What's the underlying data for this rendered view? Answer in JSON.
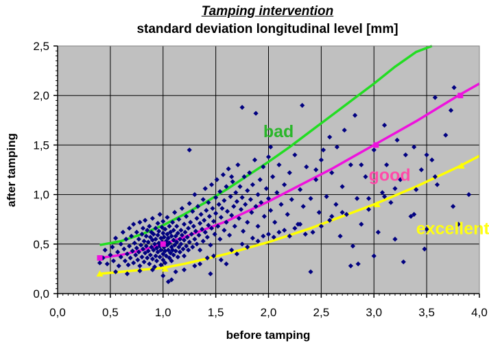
{
  "chart_data": {
    "type": "scatter",
    "title": "Tamping intervention",
    "subtitle": "standard deviation longitudinal level [mm]",
    "xlabel": "before tamping",
    "ylabel": "after tamping",
    "xlim": [
      0,
      4.0
    ],
    "ylim": [
      0,
      2.5
    ],
    "xticks": [
      "0,0",
      "0,5",
      "1,0",
      "1,5",
      "2,0",
      "2,5",
      "3,0",
      "3,5",
      "4,0"
    ],
    "yticks": [
      "0,0",
      "0,5",
      "1,0",
      "1,5",
      "2,0",
      "2,5"
    ],
    "grid": true,
    "background": "#c0c0c0",
    "curves": [
      {
        "label": "bad",
        "color": "#22dd22",
        "label_color": "#2ab62a",
        "label_pos": [
          1.95,
          1.58
        ],
        "points": [
          [
            0.4,
            0.49
          ],
          [
            0.6,
            0.53
          ],
          [
            0.8,
            0.6
          ],
          [
            1.0,
            0.69
          ],
          [
            1.2,
            0.8
          ],
          [
            1.4,
            0.92
          ],
          [
            1.6,
            1.05
          ],
          [
            1.8,
            1.19
          ],
          [
            2.0,
            1.33
          ],
          [
            2.2,
            1.48
          ],
          [
            2.4,
            1.64
          ],
          [
            2.6,
            1.8
          ],
          [
            2.8,
            1.96
          ],
          [
            3.0,
            2.12
          ],
          [
            3.2,
            2.29
          ],
          [
            3.4,
            2.44
          ],
          [
            3.55,
            2.5
          ]
        ],
        "markers": []
      },
      {
        "label": "good",
        "color": "#ee11dd",
        "label_color": "#ff4aaa",
        "label_pos": [
          2.95,
          1.14
        ],
        "points": [
          [
            0.4,
            0.36
          ],
          [
            0.6,
            0.39
          ],
          [
            0.8,
            0.44
          ],
          [
            1.0,
            0.5
          ],
          [
            1.2,
            0.57
          ],
          [
            1.4,
            0.65
          ],
          [
            1.6,
            0.73
          ],
          [
            1.8,
            0.83
          ],
          [
            2.0,
            0.93
          ],
          [
            2.2,
            1.04
          ],
          [
            2.4,
            1.15
          ],
          [
            2.6,
            1.26
          ],
          [
            2.8,
            1.38
          ],
          [
            3.0,
            1.5
          ],
          [
            3.2,
            1.62
          ],
          [
            3.4,
            1.74
          ],
          [
            3.6,
            1.87
          ],
          [
            3.8,
            2.0
          ],
          [
            4.0,
            2.12
          ]
        ],
        "markers": [
          [
            0.4,
            0.36
          ],
          [
            1.0,
            0.5
          ],
          [
            3.02,
            1.5
          ],
          [
            3.82,
            2.0
          ]
        ]
      },
      {
        "label": "excellent",
        "color": "#ffff00",
        "label_color": "#ffff11",
        "label_pos": [
          3.4,
          0.6
        ],
        "points": [
          [
            0.4,
            0.2
          ],
          [
            0.6,
            0.22
          ],
          [
            0.8,
            0.24
          ],
          [
            1.0,
            0.26
          ],
          [
            1.2,
            0.3
          ],
          [
            1.4,
            0.35
          ],
          [
            1.6,
            0.4
          ],
          [
            1.8,
            0.46
          ],
          [
            2.0,
            0.52
          ],
          [
            2.2,
            0.59
          ],
          [
            2.4,
            0.66
          ],
          [
            2.6,
            0.74
          ],
          [
            2.8,
            0.82
          ],
          [
            3.0,
            0.9
          ],
          [
            3.2,
            0.99
          ],
          [
            3.4,
            1.08
          ],
          [
            3.6,
            1.18
          ],
          [
            3.8,
            1.28
          ],
          [
            4.0,
            1.39
          ]
        ],
        "markers": [
          [
            0.4,
            0.2
          ],
          [
            1.02,
            0.25
          ],
          [
            3.03,
            0.9
          ],
          [
            3.83,
            1.29
          ]
        ]
      }
    ],
    "scatter_color": "#000080",
    "points": [
      [
        0.4,
        0.31
      ],
      [
        0.43,
        0.36
      ],
      [
        0.45,
        0.44
      ],
      [
        0.47,
        0.3
      ],
      [
        0.5,
        0.39
      ],
      [
        0.52,
        0.47
      ],
      [
        0.53,
        0.33
      ],
      [
        0.55,
        0.56
      ],
      [
        0.57,
        0.42
      ],
      [
        0.58,
        0.28
      ],
      [
        0.6,
        0.5
      ],
      [
        0.6,
        0.37
      ],
      [
        0.62,
        0.62
      ],
      [
        0.63,
        0.45
      ],
      [
        0.64,
        0.33
      ],
      [
        0.65,
        0.55
      ],
      [
        0.66,
        0.4
      ],
      [
        0.67,
        0.29
      ],
      [
        0.68,
        0.66
      ],
      [
        0.68,
        0.48
      ],
      [
        0.69,
        0.36
      ],
      [
        0.7,
        0.58
      ],
      [
        0.71,
        0.43
      ],
      [
        0.72,
        0.31
      ],
      [
        0.72,
        0.7
      ],
      [
        0.73,
        0.51
      ],
      [
        0.74,
        0.39
      ],
      [
        0.75,
        0.62
      ],
      [
        0.75,
        0.46
      ],
      [
        0.76,
        0.34
      ],
      [
        0.77,
        0.55
      ],
      [
        0.77,
        0.42
      ],
      [
        0.78,
        0.72
      ],
      [
        0.78,
        0.28
      ],
      [
        0.79,
        0.49
      ],
      [
        0.8,
        0.6
      ],
      [
        0.8,
        0.37
      ],
      [
        0.81,
        0.45
      ],
      [
        0.81,
        0.66
      ],
      [
        0.82,
        0.53
      ],
      [
        0.82,
        0.32
      ],
      [
        0.83,
        0.41
      ],
      [
        0.83,
        0.74
      ],
      [
        0.84,
        0.58
      ],
      [
        0.84,
        0.48
      ],
      [
        0.85,
        0.36
      ],
      [
        0.85,
        0.64
      ],
      [
        0.86,
        0.52
      ],
      [
        0.86,
        0.43
      ],
      [
        0.87,
        0.3
      ],
      [
        0.87,
        0.68
      ],
      [
        0.88,
        0.57
      ],
      [
        0.88,
        0.39
      ],
      [
        0.89,
        0.47
      ],
      [
        0.89,
        0.62
      ],
      [
        0.9,
        0.35
      ],
      [
        0.9,
        0.54
      ],
      [
        0.9,
        0.76
      ],
      [
        0.91,
        0.44
      ],
      [
        0.91,
        0.6
      ],
      [
        0.92,
        0.5
      ],
      [
        0.92,
        0.27
      ],
      [
        0.93,
        0.38
      ],
      [
        0.93,
        0.66
      ],
      [
        0.93,
        0.55
      ],
      [
        0.94,
        0.46
      ],
      [
        0.94,
        0.33
      ],
      [
        0.95,
        0.59
      ],
      [
        0.95,
        0.71
      ],
      [
        0.95,
        0.42
      ],
      [
        0.96,
        0.51
      ],
      [
        0.96,
        0.63
      ],
      [
        0.97,
        0.37
      ],
      [
        0.97,
        0.48
      ],
      [
        0.97,
        0.8
      ],
      [
        0.98,
        0.56
      ],
      [
        0.98,
        0.29
      ],
      [
        0.98,
        0.44
      ],
      [
        0.99,
        0.67
      ],
      [
        0.99,
        0.52
      ],
      [
        1.0,
        0.4
      ],
      [
        1.0,
        0.61
      ],
      [
        1.0,
        0.34
      ],
      [
        1.0,
        0.73
      ],
      [
        1.01,
        0.47
      ],
      [
        1.01,
        0.57
      ],
      [
        1.02,
        0.43
      ],
      [
        1.02,
        0.65
      ],
      [
        1.02,
        0.31
      ],
      [
        1.03,
        0.53
      ],
      [
        1.03,
        0.38
      ],
      [
        1.04,
        0.6
      ],
      [
        1.04,
        0.49
      ],
      [
        1.04,
        0.77
      ],
      [
        1.05,
        0.44
      ],
      [
        1.05,
        0.56
      ],
      [
        1.06,
        0.36
      ],
      [
        1.06,
        0.68
      ],
      [
        1.06,
        0.51
      ],
      [
        1.07,
        0.41
      ],
      [
        1.07,
        0.62
      ],
      [
        1.08,
        0.47
      ],
      [
        1.08,
        0.33
      ],
      [
        1.08,
        0.58
      ],
      [
        1.09,
        0.72
      ],
      [
        1.09,
        0.44
      ],
      [
        1.1,
        0.54
      ],
      [
        1.1,
        0.39
      ],
      [
        1.1,
        0.64
      ],
      [
        1.11,
        0.49
      ],
      [
        1.11,
        0.82
      ],
      [
        1.12,
        0.58
      ],
      [
        1.12,
        0.43
      ],
      [
        1.13,
        0.52
      ],
      [
        1.13,
        0.68
      ],
      [
        1.14,
        0.37
      ],
      [
        1.14,
        0.61
      ],
      [
        1.15,
        0.47
      ],
      [
        1.15,
        0.75
      ],
      [
        1.16,
        0.55
      ],
      [
        1.16,
        0.42
      ],
      [
        1.17,
        0.64
      ],
      [
        1.17,
        0.5
      ],
      [
        1.18,
        0.86
      ],
      [
        1.18,
        0.59
      ],
      [
        1.19,
        0.45
      ],
      [
        1.2,
        0.7
      ],
      [
        1.2,
        0.54
      ],
      [
        1.2,
        0.38
      ],
      [
        1.21,
        0.62
      ],
      [
        1.22,
        0.48
      ],
      [
        1.22,
        0.78
      ],
      [
        1.23,
        0.57
      ],
      [
        1.24,
        0.66
      ],
      [
        1.24,
        0.44
      ],
      [
        1.25,
        0.91
      ],
      [
        1.25,
        0.52
      ],
      [
        1.26,
        0.72
      ],
      [
        1.27,
        0.6
      ],
      [
        1.28,
        0.47
      ],
      [
        1.28,
        0.83
      ],
      [
        1.29,
        0.68
      ],
      [
        1.3,
        0.55
      ],
      [
        1.3,
        1.0
      ],
      [
        1.31,
        0.63
      ],
      [
        1.32,
        0.76
      ],
      [
        1.32,
        0.5
      ],
      [
        1.33,
        0.88
      ],
      [
        1.34,
        0.59
      ],
      [
        1.35,
        0.71
      ],
      [
        1.35,
        0.44
      ],
      [
        1.36,
        0.8
      ],
      [
        1.37,
        0.65
      ],
      [
        1.38,
        0.95
      ],
      [
        1.38,
        0.53
      ],
      [
        1.39,
        0.74
      ],
      [
        1.4,
        0.62
      ],
      [
        1.4,
        1.06
      ],
      [
        1.41,
        0.84
      ],
      [
        1.42,
        0.57
      ],
      [
        1.43,
        0.69
      ],
      [
        1.43,
        0.92
      ],
      [
        1.44,
        0.78
      ],
      [
        1.45,
        0.49
      ],
      [
        1.46,
        1.1
      ],
      [
        1.46,
        0.66
      ],
      [
        1.47,
        0.86
      ],
      [
        1.48,
        0.73
      ],
      [
        1.49,
        0.6
      ],
      [
        1.5,
        0.97
      ],
      [
        1.5,
        0.81
      ],
      [
        1.51,
        1.15
      ],
      [
        1.52,
        0.68
      ],
      [
        1.53,
        0.9
      ],
      [
        1.54,
        0.55
      ],
      [
        1.54,
        1.03
      ],
      [
        1.55,
        0.77
      ],
      [
        1.56,
        0.86
      ],
      [
        1.57,
        1.2
      ],
      [
        1.58,
        0.64
      ],
      [
        1.58,
        0.94
      ],
      [
        1.6,
        0.72
      ],
      [
        1.6,
        1.08
      ],
      [
        1.61,
        0.83
      ],
      [
        1.62,
        1.26
      ],
      [
        1.63,
        0.59
      ],
      [
        1.64,
        0.98
      ],
      [
        1.65,
        0.79
      ],
      [
        1.66,
        1.13
      ],
      [
        1.67,
        0.88
      ],
      [
        1.68,
        0.68
      ],
      [
        1.69,
        1.02
      ],
      [
        1.7,
        0.93
      ],
      [
        1.71,
        1.3
      ],
      [
        1.72,
        0.76
      ],
      [
        1.73,
        1.08
      ],
      [
        1.74,
        0.85
      ],
      [
        1.75,
        0.97
      ],
      [
        1.76,
        0.63
      ],
      [
        1.77,
        1.18
      ],
      [
        1.78,
        0.9
      ],
      [
        1.8,
        1.04
      ],
      [
        1.8,
        0.72
      ],
      [
        1.82,
        1.22
      ],
      [
        1.83,
        0.95
      ],
      [
        1.84,
        0.82
      ],
      [
        1.85,
        1.1
      ],
      [
        1.87,
        1.35
      ],
      [
        1.88,
        0.88
      ],
      [
        1.9,
        1.0
      ],
      [
        1.9,
        0.68
      ],
      [
        1.92,
        1.15
      ],
      [
        1.93,
        0.92
      ],
      [
        1.95,
        1.28
      ],
      [
        1.96,
        0.78
      ],
      [
        1.98,
        1.06
      ],
      [
        2.0,
        0.96
      ],
      [
        2.0,
        1.38
      ],
      [
        2.02,
        0.84
      ],
      [
        2.04,
        1.18
      ],
      [
        2.06,
        0.72
      ],
      [
        2.08,
        1.02
      ],
      [
        2.1,
        1.3
      ],
      [
        2.12,
        0.9
      ],
      [
        2.15,
        1.1
      ],
      [
        2.18,
        0.8
      ],
      [
        2.2,
        1.22
      ],
      [
        2.22,
        0.95
      ],
      [
        2.25,
        1.4
      ],
      [
        2.28,
        0.7
      ],
      [
        2.3,
        1.05
      ],
      [
        2.33,
        0.88
      ],
      [
        2.36,
        1.28
      ],
      [
        2.4,
        0.96
      ],
      [
        2.42,
        0.62
      ],
      [
        2.45,
        1.15
      ],
      [
        2.48,
        0.82
      ],
      [
        2.5,
        1.35
      ],
      [
        2.55,
        0.98
      ],
      [
        2.58,
        0.74
      ],
      [
        2.6,
        1.22
      ],
      [
        2.64,
        0.9
      ],
      [
        2.68,
        0.58
      ],
      [
        2.7,
        1.08
      ],
      [
        2.74,
        0.8
      ],
      [
        2.78,
        1.3
      ],
      [
        2.8,
        0.48
      ],
      [
        2.84,
        0.96
      ],
      [
        2.88,
        0.7
      ],
      [
        2.92,
        1.18
      ],
      [
        2.95,
        0.85
      ],
      [
        3.0,
        1.45
      ],
      [
        3.04,
        0.62
      ],
      [
        3.08,
        1.02
      ],
      [
        3.12,
        1.3
      ],
      [
        3.16,
        0.92
      ],
      [
        3.2,
        0.55
      ],
      [
        3.25,
        1.15
      ],
      [
        3.3,
        1.4
      ],
      [
        3.35,
        0.78
      ],
      [
        3.4,
        1.05
      ],
      [
        3.45,
        1.25
      ],
      [
        3.5,
        0.65
      ],
      [
        3.55,
        1.35
      ],
      [
        3.6,
        1.1
      ],
      [
        3.68,
        1.6
      ],
      [
        3.75,
        0.88
      ],
      [
        3.8,
        0.7
      ],
      [
        3.9,
        1.0
      ],
      [
        0.55,
        0.22
      ],
      [
        0.66,
        0.2
      ],
      [
        0.78,
        0.23
      ],
      [
        0.9,
        0.24
      ],
      [
        1.0,
        0.18
      ],
      [
        1.05,
        0.12
      ],
      [
        1.08,
        0.14
      ],
      [
        1.12,
        0.22
      ],
      [
        1.2,
        0.24
      ],
      [
        1.3,
        0.28
      ],
      [
        1.35,
        0.3
      ],
      [
        1.42,
        0.36
      ],
      [
        1.45,
        0.2
      ],
      [
        1.48,
        0.38
      ],
      [
        1.55,
        0.34
      ],
      [
        1.6,
        0.3
      ],
      [
        1.65,
        0.44
      ],
      [
        1.7,
        0.4
      ],
      [
        1.75,
        0.5
      ],
      [
        1.8,
        0.47
      ],
      [
        1.85,
        0.56
      ],
      [
        1.9,
        0.53
      ],
      [
        1.95,
        0.58
      ],
      [
        2.0,
        0.6
      ],
      [
        2.05,
        0.57
      ],
      [
        2.1,
        0.62
      ],
      [
        2.15,
        0.64
      ],
      [
        2.2,
        0.58
      ],
      [
        2.25,
        0.66
      ],
      [
        2.3,
        0.7
      ],
      [
        2.35,
        0.6
      ],
      [
        2.4,
        0.22
      ],
      [
        2.5,
        0.68
      ],
      [
        2.6,
        0.78
      ],
      [
        2.7,
        0.82
      ],
      [
        2.78,
        0.28
      ],
      [
        2.85,
        0.3
      ],
      [
        2.95,
        0.96
      ],
      [
        3.0,
        0.38
      ],
      [
        3.1,
        0.98
      ],
      [
        3.2,
        1.06
      ],
      [
        3.28,
        0.32
      ],
      [
        3.38,
        0.8
      ],
      [
        3.48,
        0.45
      ],
      [
        3.58,
        1.18
      ],
      [
        1.25,
        1.45
      ],
      [
        1.65,
        1.18
      ],
      [
        1.75,
        1.88
      ],
      [
        1.88,
        1.82
      ],
      [
        2.02,
        1.48
      ],
      [
        2.32,
        1.9
      ],
      [
        2.52,
        1.45
      ],
      [
        2.58,
        1.58
      ],
      [
        2.72,
        1.65
      ],
      [
        2.82,
        1.8
      ],
      [
        2.88,
        1.3
      ],
      [
        3.1,
        1.7
      ],
      [
        3.38,
        1.48
      ],
      [
        3.58,
        1.98
      ],
      [
        3.73,
        1.85
      ],
      [
        3.76,
        2.08
      ],
      [
        2.45,
        1.25
      ],
      [
        2.65,
        1.48
      ],
      [
        3.22,
        1.55
      ],
      [
        3.5,
        1.4
      ]
    ]
  }
}
